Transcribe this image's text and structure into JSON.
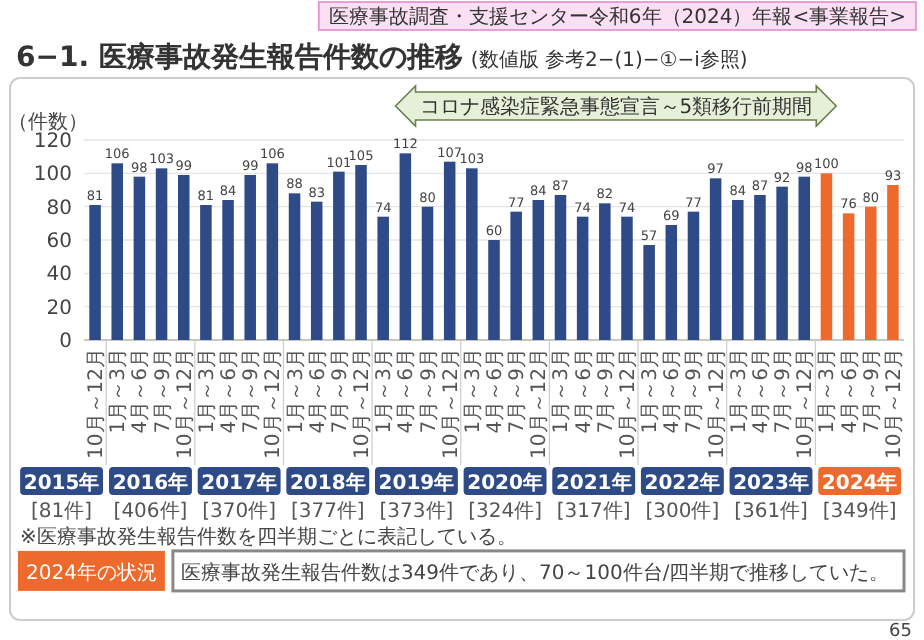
{
  "chart_data": {
    "type": "bar",
    "title": "6−1. 医療事故発生報告件数の推移",
    "subtitle": "(数値版 参考2−(1)−①−i参照)",
    "ylabel": "（件数）",
    "categories": [
      "10月～12月",
      "1月～3月",
      "4月～6月",
      "7月～9月",
      "10月～12月",
      "1月～3月",
      "4月～6月",
      "7月～9月",
      "10月～12月",
      "1月～3月",
      "4月～6月",
      "7月～9月",
      "10月～12月",
      "1月～3月",
      "4月～6月",
      "7月～9月",
      "10月～12月",
      "1月～3月",
      "4月～6月",
      "7月～9月",
      "10月～12月",
      "1月～3月",
      "4月～6月",
      "7月～9月",
      "10月～12月",
      "1月～3月",
      "4月～6月",
      "7月～9月",
      "10月～12月",
      "1月～3月",
      "4月～6月",
      "7月～9月",
      "10月～12月",
      "1月～3月",
      "4月～6月",
      "7月～9月",
      "10月～12月"
    ],
    "values": [
      81,
      106,
      98,
      103,
      99,
      81,
      84,
      99,
      106,
      88,
      83,
      101,
      105,
      74,
      112,
      80,
      107,
      103,
      60,
      77,
      84,
      87,
      74,
      82,
      74,
      57,
      69,
      77,
      97,
      84,
      87,
      92,
      98,
      100,
      76,
      80,
      93
    ],
    "colors": [
      "#2e4a87",
      "#2e4a87",
      "#2e4a87",
      "#2e4a87",
      "#2e4a87",
      "#2e4a87",
      "#2e4a87",
      "#2e4a87",
      "#2e4a87",
      "#2e4a87",
      "#2e4a87",
      "#2e4a87",
      "#2e4a87",
      "#2e4a87",
      "#2e4a87",
      "#2e4a87",
      "#2e4a87",
      "#2e4a87",
      "#2e4a87",
      "#2e4a87",
      "#2e4a87",
      "#2e4a87",
      "#2e4a87",
      "#2e4a87",
      "#2e4a87",
      "#2e4a87",
      "#2e4a87",
      "#2e4a87",
      "#2e4a87",
      "#2e4a87",
      "#2e4a87",
      "#2e4a87",
      "#2e4a87",
      "#ee6a2c",
      "#ee6a2c",
      "#ee6a2c",
      "#ee6a2c"
    ],
    "ylim": [
      0,
      120
    ],
    "yticks": [
      0,
      20,
      40,
      60,
      80,
      100,
      120
    ],
    "grid": "y",
    "data_labels": true,
    "annotations": [
      "医療事故調査・支援センター令和6年（2024）年報<事業報告>",
      "コロナ感染症緊急事態宣言～5類移行前期間",
      "2015年",
      "2016年",
      "2017年",
      "2018年",
      "2019年",
      "2020年",
      "2021年",
      "2022年",
      "2023年",
      "2024年",
      "[81件]",
      "[406件]",
      "[370件]",
      "[377件]",
      "[373件]",
      "[324件]",
      "[317件]",
      "[300件]",
      "[361件]",
      "[349件]",
      "※医療事故発生報告件数を四半期ごとに表記している。",
      "2024年の状況",
      "医療事故発生報告件数は349件であり、70～100件台/四半期で推移していた。",
      "65"
    ]
  }
}
